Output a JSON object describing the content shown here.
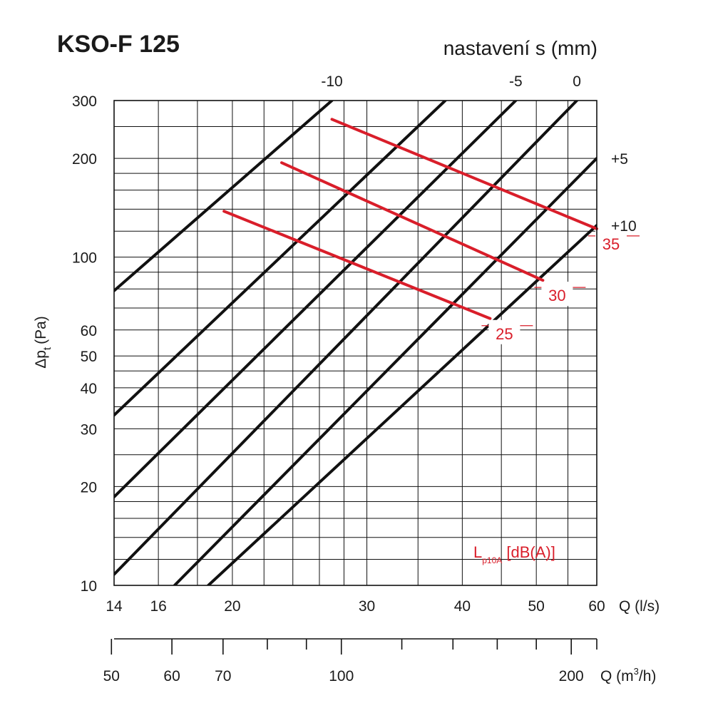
{
  "chart_data": {
    "type": "line",
    "title": "KSO-F 125",
    "top_axis_label": "nastavení s (mm)",
    "y_label": "Δp",
    "y_label_sub": "t",
    "y_label_unit": "(Pa)",
    "x_unit": "Q (l/s)",
    "x2_unit": "Q (m³/h)",
    "x2_unit_base": "Q (m",
    "x2_unit_sup": "3",
    "x2_unit_tail": "/h)",
    "x_scale": "log",
    "y_scale": "log",
    "xlim": [
      14,
      60
    ],
    "ylim": [
      10,
      300
    ],
    "grid": true,
    "x_ticks": [
      {
        "v": 14,
        "label": "14"
      },
      {
        "v": 16,
        "label": "16"
      },
      {
        "v": 20,
        "label": "20"
      },
      {
        "v": 30,
        "label": "30"
      },
      {
        "v": 40,
        "label": "40"
      },
      {
        "v": 50,
        "label": "50"
      },
      {
        "v": 60,
        "label": "60"
      }
    ],
    "x_grid": [
      16,
      18,
      20,
      22,
      24,
      26,
      28,
      30,
      35,
      40,
      45,
      50,
      55,
      60
    ],
    "y_ticks": [
      {
        "v": 10,
        "label": "10"
      },
      {
        "v": 20,
        "label": "20"
      },
      {
        "v": 30,
        "label": "30"
      },
      {
        "v": 40,
        "label": "40"
      },
      {
        "v": 50,
        "label": "50"
      },
      {
        "v": 60,
        "label": "60"
      },
      {
        "v": 100,
        "label": "100"
      },
      {
        "v": 200,
        "label": "200"
      },
      {
        "v": 300,
        "label": "300"
      }
    ],
    "y_grid": [
      12,
      14,
      16,
      18,
      20,
      25,
      30,
      35,
      40,
      45,
      50,
      60,
      70,
      80,
      90,
      100,
      120,
      140,
      160,
      180,
      200,
      250,
      300
    ],
    "x2_ticks": [
      {
        "v": 50,
        "label": "50"
      },
      {
        "v": 60,
        "label": "60"
      },
      {
        "v": 70,
        "label": "70"
      },
      {
        "v": 100,
        "label": "100"
      },
      {
        "v": 200,
        "label": "200"
      }
    ],
    "x2_minor": [
      80,
      90,
      120,
      140,
      160,
      180
    ],
    "series": [
      {
        "name": "-10",
        "color": "#111111",
        "points": [
          [
            14,
            79
          ],
          [
            27,
            300
          ]
        ],
        "label_pos": "top"
      },
      {
        "name": "",
        "color": "#111111",
        "points": [
          [
            14,
            33
          ],
          [
            38,
            300
          ]
        ]
      },
      {
        "name": "-5",
        "color": "#111111",
        "points": [
          [
            14,
            18.6
          ],
          [
            47,
            300
          ]
        ],
        "label_pos": "top"
      },
      {
        "name": "0",
        "color": "#111111",
        "points": [
          [
            14,
            10.8
          ],
          [
            56.5,
            300
          ]
        ],
        "label_pos": "top"
      },
      {
        "name": "+5",
        "color": "#111111",
        "points": [
          [
            16.8,
            10
          ],
          [
            60,
            200
          ]
        ],
        "label_pos": "right"
      },
      {
        "name": "+10",
        "color": "#111111",
        "points": [
          [
            18.6,
            10
          ],
          [
            60,
            125
          ]
        ],
        "label_pos": "right"
      }
    ],
    "noise_series": [
      {
        "name": "35",
        "color": "#d91e2a",
        "points": [
          [
            27,
            263
          ],
          [
            60,
            122
          ]
        ]
      },
      {
        "name": "30",
        "color": "#d91e2a",
        "points": [
          [
            23.2,
            194
          ],
          [
            51,
            85
          ]
        ]
      },
      {
        "name": "25",
        "color": "#d91e2a",
        "points": [
          [
            19.5,
            138
          ],
          [
            43.5,
            65
          ]
        ]
      }
    ],
    "noise_legend": {
      "base": "L",
      "sub": "p10A",
      "tail": " [dB(A)]"
    }
  }
}
